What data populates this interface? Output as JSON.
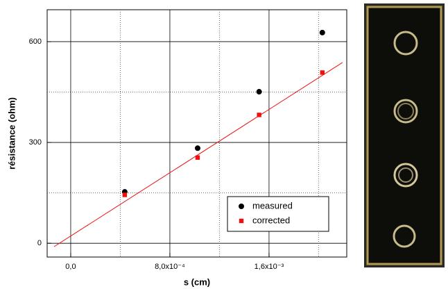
{
  "chart_data": {
    "type": "scatter",
    "x_label": "s (cm)",
    "y_label": "résistance (ohm)",
    "xlim": [
      -0.00019,
      0.002227
    ],
    "ylim": [
      -41,
      695
    ],
    "xticks": [
      {
        "value": 0,
        "label": "0,0"
      },
      {
        "value": 0.0008,
        "label": "8,0x10⁻⁴"
      },
      {
        "value": 0.0016,
        "label": "1,6x10⁻³"
      }
    ],
    "minor_xticks": [
      0.0004,
      0.0012,
      0.002
    ],
    "yticks": [
      0,
      300,
      600
    ],
    "minor_yticks": [
      150,
      450
    ],
    "grid": true,
    "legend_position": "lower right",
    "series": [
      {
        "name": "measured",
        "color": "#000000",
        "marker": "circle",
        "x": [
          0.000436,
          0.001024,
          0.00152,
          0.00203
        ],
        "values": [
          153,
          283,
          451,
          627
        ]
      },
      {
        "name": "corrected",
        "color": "#ee1111",
        "marker": "square",
        "x": [
          0.000436,
          0.001024,
          0.00152,
          0.00203
        ],
        "values": [
          144,
          255,
          382,
          508
        ]
      }
    ],
    "fit_line": {
      "color": "#ee1111",
      "x": [
        -0.000134,
        0.002193
      ],
      "values": [
        -10,
        538
      ]
    }
  }
}
